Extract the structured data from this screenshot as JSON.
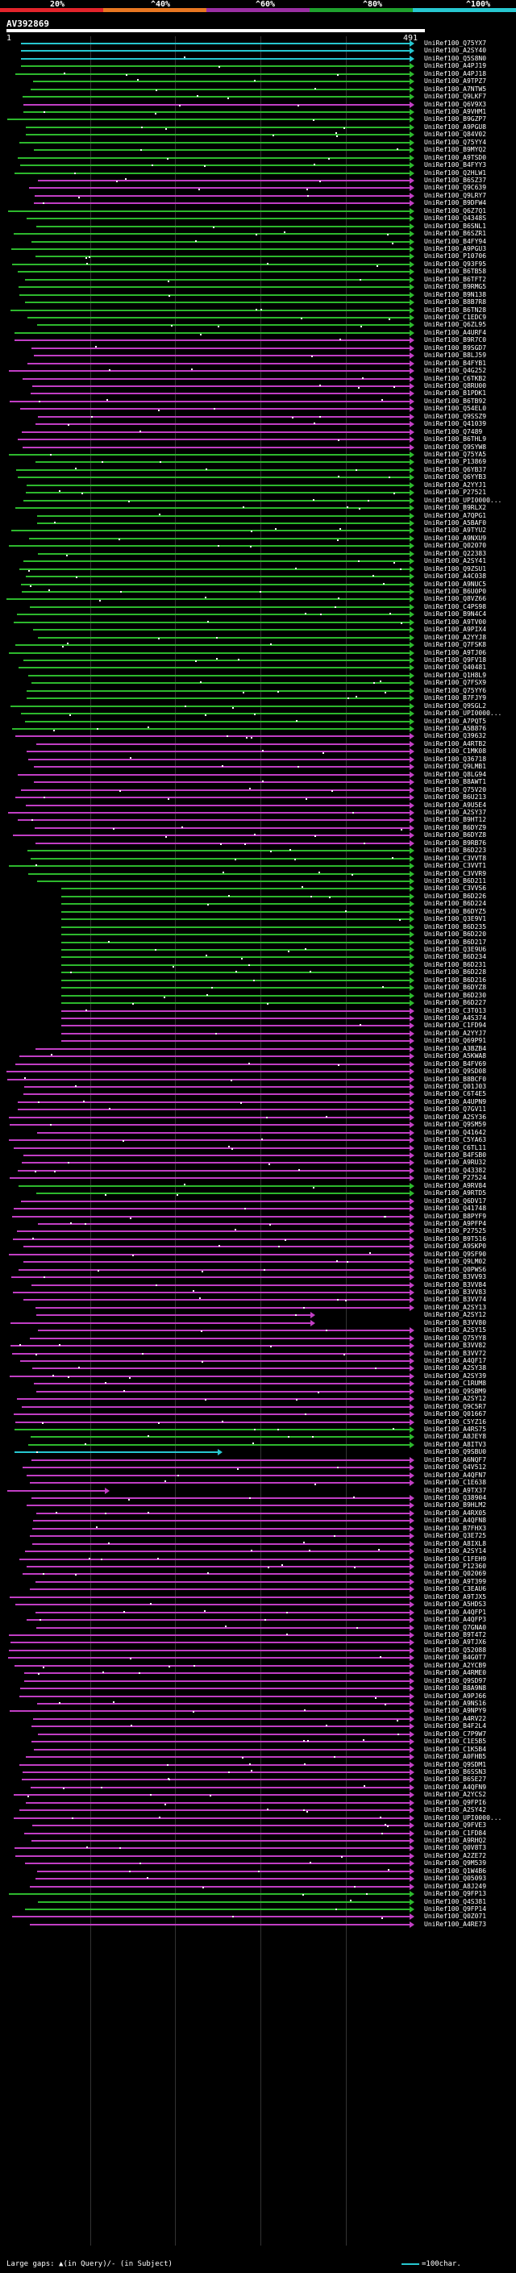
{
  "scale": {
    "labels": [
      "20%",
      "^40%",
      "^60%",
      "^80%",
      "^100%"
    ],
    "colors": [
      "#e3242b",
      "#e87722",
      "#9b2fa3",
      "#1fa12e",
      "#27c7d0"
    ]
  },
  "query": {
    "name": "AV392869",
    "start": "1",
    "end": "491"
  },
  "hit_colors": {
    "cyan": "#27c7d0",
    "green": "#2db82d",
    "magenta": "#c13ec4"
  },
  "hits": [
    {
      "label": "UniRef100_Q75YX7",
      "c": "cyan"
    },
    {
      "label": "UniRef100_A2SY40",
      "c": "cyan"
    },
    {
      "label": "UniRef100_Q5S8N0",
      "c": "cyan"
    },
    {
      "label": "UniRef100_A4PJ19",
      "c": "green"
    },
    {
      "label": "UniRef100_A4PJ18",
      "c": "green"
    },
    {
      "label": "UniRef100_A9TPZ7",
      "c": "green"
    },
    {
      "label": "UniRef100_A7NTW5",
      "c": "green"
    },
    {
      "label": "UniRef100_Q9LKF7",
      "c": "green"
    },
    {
      "label": "UniRef100_Q6V9X3",
      "c": "magenta"
    },
    {
      "label": "UniRef100_A9VHM1",
      "c": "green"
    },
    {
      "label": "UniRef100_B9GZP7",
      "c": "green"
    },
    {
      "label": "UniRef100_A9PGU8",
      "c": "green"
    },
    {
      "label": "UniRef100_Q84V02",
      "c": "green"
    },
    {
      "label": "UniRef100_Q75YY4",
      "c": "green"
    },
    {
      "label": "UniRef100_B9MYQ2",
      "c": "green"
    },
    {
      "label": "UniRef100_A9TSD0",
      "c": "green"
    },
    {
      "label": "UniRef100_B4FYY3",
      "c": "green"
    },
    {
      "label": "UniRef100_Q2HLW1",
      "c": "green"
    },
    {
      "label": "UniRef100_B6SZ37",
      "c": "magenta"
    },
    {
      "label": "UniRef100_Q9C639",
      "c": "magenta"
    },
    {
      "label": "UniRef100_Q9LRY7",
      "c": "magenta"
    },
    {
      "label": "UniRef100_B9DFW4",
      "c": "magenta"
    },
    {
      "label": "UniRef100_Q6Z7Q1",
      "c": "green"
    },
    {
      "label": "UniRef100_Q4348S",
      "c": "green"
    },
    {
      "label": "UniRef100_B6SNL1",
      "c": "green"
    },
    {
      "label": "UniRef100_B6SZR1",
      "c": "green"
    },
    {
      "label": "UniRef100_B4FY94",
      "c": "green"
    },
    {
      "label": "UniRef100_A9PGU3",
      "c": "green"
    },
    {
      "label": "UniRef100_P10706",
      "c": "green"
    },
    {
      "label": "UniRef100_Q93F95",
      "c": "green"
    },
    {
      "label": "UniRef100_B6TB58",
      "c": "green"
    },
    {
      "label": "UniRef100_B6TFT2",
      "c": "green"
    },
    {
      "label": "UniRef100_B9RMG5",
      "c": "green"
    },
    {
      "label": "UniRef100_B9N138",
      "c": "green"
    },
    {
      "label": "UniRef100_B8B7R8",
      "c": "green"
    },
    {
      "label": "UniRef100_B6TN28",
      "c": "green"
    },
    {
      "label": "UniRef100_C1EDC9",
      "c": "green"
    },
    {
      "label": "UniRef100_Q6ZL95",
      "c": "green"
    },
    {
      "label": "UniRef100_A4URF4",
      "c": "green"
    },
    {
      "label": "UniRef100_B9R7C0",
      "c": "magenta"
    },
    {
      "label": "UniRef100_B9SGD7",
      "c": "magenta"
    },
    {
      "label": "UniRef100_B8LJ59",
      "c": "magenta"
    },
    {
      "label": "UniRef100_B4FYB1",
      "c": "magenta"
    },
    {
      "label": "UniRef100_Q4G252",
      "c": "magenta"
    },
    {
      "label": "UniRef100_C6TKB2",
      "c": "magenta"
    },
    {
      "label": "UniRef100_Q8RU00",
      "c": "magenta"
    },
    {
      "label": "UniRef100_B1PDK1",
      "c": "magenta"
    },
    {
      "label": "UniRef100_B6TB92",
      "c": "magenta"
    },
    {
      "label": "UniRef100_Q54EL0",
      "c": "magenta"
    },
    {
      "label": "UniRef100_Q9SSZ9",
      "c": "magenta"
    },
    {
      "label": "UniRef100_Q41039",
      "c": "magenta"
    },
    {
      "label": "UniRef100_Q7489",
      "c": "magenta"
    },
    {
      "label": "UniRef100_B6THL9",
      "c": "magenta"
    },
    {
      "label": "UniRef100_Q9SYW8",
      "c": "magenta"
    },
    {
      "label": "UniRef100_Q75YA5",
      "c": "green"
    },
    {
      "label": "UniRef100_P13869",
      "c": "green"
    },
    {
      "label": "UniRef100_Q6YB37",
      "c": "green"
    },
    {
      "label": "UniRef100_Q6YYB3",
      "c": "green"
    },
    {
      "label": "UniRef100_A2YYJ1",
      "c": "green"
    },
    {
      "label": "UniRef100_P27521",
      "c": "green"
    },
    {
      "label": "UniRef100_UPI0000...",
      "c": "green"
    },
    {
      "label": "UniRef100_B9RLX2",
      "c": "green"
    },
    {
      "label": "UniRef100_A7QPG1",
      "c": "green"
    },
    {
      "label": "UniRef100_A5BAF0",
      "c": "green"
    },
    {
      "label": "UniRef100_A9TYU2",
      "c": "green"
    },
    {
      "label": "UniRef100_A9NXU9",
      "c": "green"
    },
    {
      "label": "UniRef100_Q02070",
      "c": "green"
    },
    {
      "label": "UniRef100_Q22383",
      "c": "green"
    },
    {
      "label": "UniRef100_A2SY41",
      "c": "green"
    },
    {
      "label": "UniRef100_Q9ZSU1",
      "c": "green"
    },
    {
      "label": "UniRef100_A4C038",
      "c": "green"
    },
    {
      "label": "UniRef100_A9NUC5",
      "c": "green"
    },
    {
      "label": "UniRef100_B6U0P0",
      "c": "green"
    },
    {
      "label": "UniRef100_Q8VZ66",
      "c": "green"
    },
    {
      "label": "UniRef100_C4PS98",
      "c": "green"
    },
    {
      "label": "UniRef100_B9N4C4",
      "c": "green"
    },
    {
      "label": "UniRef100_A9TV00",
      "c": "green"
    },
    {
      "label": "UniRef100_A9PIX4",
      "c": "green"
    },
    {
      "label": "UniRef100_A2YYJ8",
      "c": "green"
    },
    {
      "label": "UniRef100_Q7FSK8",
      "c": "green"
    },
    {
      "label": "UniRef100_A9TJ06",
      "c": "green"
    },
    {
      "label": "UniRef100_Q9FV18",
      "c": "green"
    },
    {
      "label": "UniRef100_Q40481",
      "c": "green"
    },
    {
      "label": "UniRef100_Q1H8L9",
      "c": "green"
    },
    {
      "label": "UniRef100_Q7FSX9",
      "c": "green"
    },
    {
      "label": "UniRef100_Q75YY6",
      "c": "green"
    },
    {
      "label": "UniRef100_B7FJY9",
      "c": "green"
    },
    {
      "label": "UniRef100_Q9SGL2",
      "c": "green"
    },
    {
      "label": "UniRef100_UPI0000...",
      "c": "green"
    },
    {
      "label": "UniRef100_A7PQT5",
      "c": "green"
    },
    {
      "label": "UniRef100_A5B876",
      "c": "green"
    },
    {
      "label": "UniRef100_Q39632",
      "c": "magenta"
    },
    {
      "label": "UniRef100_A4RTB2",
      "c": "magenta"
    },
    {
      "label": "UniRef100_C1MK08",
      "c": "magenta"
    },
    {
      "label": "UniRef100_Q36718",
      "c": "magenta"
    },
    {
      "label": "UniRef100_Q9LMB1",
      "c": "magenta"
    },
    {
      "label": "UniRef100_Q8LG94",
      "c": "magenta"
    },
    {
      "label": "UniRef100_B8AWT1",
      "c": "magenta"
    },
    {
      "label": "UniRef100_Q75V20",
      "c": "magenta"
    },
    {
      "label": "UniRef100_B6U213",
      "c": "magenta"
    },
    {
      "label": "UniRef100_A9U5E4",
      "c": "magenta"
    },
    {
      "label": "UniRef100_A2SY37",
      "c": "magenta"
    },
    {
      "label": "UniRef100_B9HT12",
      "c": "magenta"
    },
    {
      "label": "UniRef100_B6DYZ9",
      "c": "magenta"
    },
    {
      "label": "UniRef100_B6DYZ8",
      "c": "magenta"
    },
    {
      "label": "UniRef100_B9RB76",
      "c": "magenta"
    },
    {
      "label": "UniRef100_B6D223",
      "c": "green"
    },
    {
      "label": "UniRef100_C3VVT8",
      "c": "green"
    },
    {
      "label": "UniRef100_C3VVT1",
      "c": "green"
    },
    {
      "label": "UniRef100_C3VVR9",
      "c": "green"
    },
    {
      "label": "UniRef100_B6D211",
      "c": "green"
    },
    {
      "label": "UniRef100_C3VVS6",
      "c": "green"
    },
    {
      "label": "UniRef100_B6D226",
      "c": "green"
    },
    {
      "label": "UniRef100_B6D224",
      "c": "green"
    },
    {
      "label": "UniRef100_B6DYZ5",
      "c": "green"
    },
    {
      "label": "UniRef100_Q3E9V1",
      "c": "green"
    },
    {
      "label": "UniRef100_B6D235",
      "c": "green"
    },
    {
      "label": "UniRef100_B6D220",
      "c": "green"
    },
    {
      "label": "UniRef100_B6D217",
      "c": "green"
    },
    {
      "label": "UniRef100_Q3E9U6",
      "c": "green"
    },
    {
      "label": "UniRef100_B6D234",
      "c": "green"
    },
    {
      "label": "UniRef100_B6D231",
      "c": "green"
    },
    {
      "label": "UniRef100_B6D228",
      "c": "green"
    },
    {
      "label": "UniRef100_B6D216",
      "c": "green"
    },
    {
      "label": "UniRef100_B6DYZ8",
      "c": "green"
    },
    {
      "label": "UniRef100_B6D230",
      "c": "green"
    },
    {
      "label": "UniRef100_B6D227",
      "c": "green"
    },
    {
      "label": "UniRef100_C3T013",
      "c": "magenta"
    },
    {
      "label": "UniRef100_A4S374",
      "c": "magenta"
    },
    {
      "label": "UniRef100_C1FD94",
      "c": "magenta"
    },
    {
      "label": "UniRef100_A2YYJ7",
      "c": "magenta"
    },
    {
      "label": "UniRef100_Q69P91",
      "c": "magenta"
    },
    {
      "label": "UniRef100_A3BZB4",
      "c": "magenta"
    },
    {
      "label": "UniRef100_A5KWA8",
      "c": "magenta"
    },
    {
      "label": "UniRef100_B4FV69",
      "c": "magenta"
    },
    {
      "label": "UniRef100_Q9SD08",
      "c": "magenta"
    },
    {
      "label": "UniRef100_B8BCF0",
      "c": "magenta"
    },
    {
      "label": "UniRef100_Q01J03",
      "c": "magenta"
    },
    {
      "label": "UniRef100_C6T4E5",
      "c": "magenta"
    },
    {
      "label": "UniRef100_A4UPN9",
      "c": "magenta"
    },
    {
      "label": "UniRef100_Q7GV11",
      "c": "magenta"
    },
    {
      "label": "UniRef100_A2SY36",
      "c": "magenta"
    },
    {
      "label": "UniRef100_Q9SM59",
      "c": "magenta"
    },
    {
      "label": "UniRef100_Q41642",
      "c": "magenta"
    },
    {
      "label": "UniRef100_C5YA63",
      "c": "magenta"
    },
    {
      "label": "UniRef100_C6TL11",
      "c": "magenta"
    },
    {
      "label": "UniRef100_B4FSB0",
      "c": "magenta"
    },
    {
      "label": "UniRef100_A9RU32",
      "c": "magenta"
    },
    {
      "label": "UniRef100_Q43382",
      "c": "magenta"
    },
    {
      "label": "UniRef100_P27524",
      "c": "magenta"
    },
    {
      "label": "UniRef100_A9RV84",
      "c": "green"
    },
    {
      "label": "UniRef100_A9RTD5",
      "c": "green"
    },
    {
      "label": "UniRef100_Q6DV17",
      "c": "magenta"
    },
    {
      "label": "UniRef100_Q41748",
      "c": "magenta"
    },
    {
      "label": "UniRef100_B8PYF9",
      "c": "magenta"
    },
    {
      "label": "UniRef100_A9PFP4",
      "c": "magenta"
    },
    {
      "label": "UniRef100_P27525",
      "c": "magenta"
    },
    {
      "label": "UniRef100_B9T516",
      "c": "magenta"
    },
    {
      "label": "UniRef100_A9SKP0",
      "c": "magenta"
    },
    {
      "label": "UniRef100_Q9SF90",
      "c": "magenta"
    },
    {
      "label": "UniRef100_Q9LM02",
      "c": "magenta"
    },
    {
      "label": "UniRef100_Q0PWS6",
      "c": "magenta"
    },
    {
      "label": "UniRef100_B3VV93",
      "c": "magenta"
    },
    {
      "label": "UniRef100_B3VV84",
      "c": "magenta"
    },
    {
      "label": "UniRef100_B3VV83",
      "c": "magenta"
    },
    {
      "label": "UniRef100_B3VV74",
      "c": "magenta"
    },
    {
      "label": "UniRef100_A2SY13",
      "c": "magenta"
    },
    {
      "label": "UniRef100_A2SY12",
      "c": "magenta"
    },
    {
      "label": "UniRef100_B3VV80",
      "c": "magenta"
    },
    {
      "label": "UniRef100_A2SY15",
      "c": "magenta"
    },
    {
      "label": "UniRef100_Q75YY8",
      "c": "magenta"
    },
    {
      "label": "UniRef100_B3VV82",
      "c": "magenta"
    },
    {
      "label": "UniRef100_B3VV72",
      "c": "magenta"
    },
    {
      "label": "UniRef100_A4QF17",
      "c": "magenta"
    },
    {
      "label": "UniRef100_A2SY38",
      "c": "magenta"
    },
    {
      "label": "UniRef100_A2SY39",
      "c": "magenta"
    },
    {
      "label": "UniRef100_C1RUM8",
      "c": "magenta"
    },
    {
      "label": "UniRef100_Q9SBM9",
      "c": "magenta"
    },
    {
      "label": "UniRef100_A2SY12",
      "c": "magenta"
    },
    {
      "label": "UniRef100_Q9C5R7",
      "c": "magenta"
    },
    {
      "label": "UniRef100_Q01667",
      "c": "magenta"
    },
    {
      "label": "UniRef100_C5YZ16",
      "c": "magenta"
    },
    {
      "label": "UniRef100_A4RS75",
      "c": "green"
    },
    {
      "label": "UniRef100_A8JEY8",
      "c": "green"
    },
    {
      "label": "UniRef100_A8ITV3",
      "c": "green"
    },
    {
      "label": "UniRef100_Q9SBU0",
      "c": "cyan"
    },
    {
      "label": "UniRef100_A6NQF7",
      "c": "magenta"
    },
    {
      "label": "UniRef100_Q4V512",
      "c": "magenta"
    },
    {
      "label": "UniRef100_A4QFN7",
      "c": "magenta"
    },
    {
      "label": "UniRef100_C1E638",
      "c": "magenta"
    },
    {
      "label": "UniRef100_A9TX37",
      "c": "magenta"
    },
    {
      "label": "UniRef100_Q38904",
      "c": "magenta"
    },
    {
      "label": "UniRef100_B9HLM2",
      "c": "magenta"
    },
    {
      "label": "UniRef100_A4RX05",
      "c": "magenta"
    },
    {
      "label": "UniRef100_A4QFN8",
      "c": "magenta"
    },
    {
      "label": "UniRef100_B7FHX3",
      "c": "magenta"
    },
    {
      "label": "UniRef100_Q3E725",
      "c": "magenta"
    },
    {
      "label": "UniRef100_A8IXL8",
      "c": "magenta"
    },
    {
      "label": "UniRef100_A2SY14",
      "c": "magenta"
    },
    {
      "label": "UniRef100_C1FEH9",
      "c": "magenta"
    },
    {
      "label": "UniRef100_P12360",
      "c": "magenta"
    },
    {
      "label": "UniRef100_Q02069",
      "c": "magenta"
    },
    {
      "label": "UniRef100_A9T399",
      "c": "magenta"
    },
    {
      "label": "UniRef100_C3EAU6",
      "c": "magenta"
    },
    {
      "label": "UniRef100_A9TJX5",
      "c": "magenta"
    },
    {
      "label": "UniRef100_A5HDS3",
      "c": "magenta"
    },
    {
      "label": "UniRef100_A4QFP1",
      "c": "magenta"
    },
    {
      "label": "UniRef100_A4QFP3",
      "c": "magenta"
    },
    {
      "label": "UniRef100_Q7GNA0",
      "c": "magenta"
    },
    {
      "label": "UniRef100_B9T4T2",
      "c": "magenta"
    },
    {
      "label": "UniRef100_A9TJX6",
      "c": "magenta"
    },
    {
      "label": "UniRef100_Q52088",
      "c": "magenta"
    },
    {
      "label": "UniRef100_B4G0T7",
      "c": "magenta"
    },
    {
      "label": "UniRef100_A2YCB9",
      "c": "magenta"
    },
    {
      "label": "UniRef100_A4RME0",
      "c": "magenta"
    },
    {
      "label": "UniRef100_Q9SD97",
      "c": "magenta"
    },
    {
      "label": "UniRef100_B8A9N8",
      "c": "magenta"
    },
    {
      "label": "UniRef100_A9PJ66",
      "c": "magenta"
    },
    {
      "label": "UniRef100_A9NS16",
      "c": "magenta"
    },
    {
      "label": "UniRef100_A9NPY9",
      "c": "magenta"
    },
    {
      "label": "UniRef100_A4RV22",
      "c": "magenta"
    },
    {
      "label": "UniRef100_B4F2L4",
      "c": "magenta"
    },
    {
      "label": "UniRef100_C7P9W7",
      "c": "magenta"
    },
    {
      "label": "UniRef100_C1E5B5",
      "c": "magenta"
    },
    {
      "label": "UniRef100_C1K5B4",
      "c": "magenta"
    },
    {
      "label": "UniRef100_A0FHB5",
      "c": "magenta"
    },
    {
      "label": "UniRef100_Q9SDM1",
      "c": "magenta"
    },
    {
      "label": "UniRef100_B6SSN3",
      "c": "magenta"
    },
    {
      "label": "UniRef100_B6SE27",
      "c": "magenta"
    },
    {
      "label": "UniRef100_A4QFN9",
      "c": "magenta"
    },
    {
      "label": "UniRef100_A2YCS2",
      "c": "magenta"
    },
    {
      "label": "UniRef100_Q9FPI6",
      "c": "magenta"
    },
    {
      "label": "UniRef100_A2SY42",
      "c": "magenta"
    },
    {
      "label": "UniRef100_UPI0000...",
      "c": "magenta"
    },
    {
      "label": "UniRef100_Q9FVE3",
      "c": "magenta"
    },
    {
      "label": "UniRef100_C1FD84",
      "c": "magenta"
    },
    {
      "label": "UniRef100_A9RHQ2",
      "c": "magenta"
    },
    {
      "label": "UniRef100_Q0V8T3",
      "c": "magenta"
    },
    {
      "label": "UniRef100_A2ZE72",
      "c": "magenta"
    },
    {
      "label": "UniRef100_Q9M539",
      "c": "magenta"
    },
    {
      "label": "UniRef100_Q1W4B6",
      "c": "magenta"
    },
    {
      "label": "UniRef100_Q05093",
      "c": "magenta"
    },
    {
      "label": "UniRef100_A8J249",
      "c": "magenta"
    },
    {
      "label": "UniRef100_Q9FP13",
      "c": "green"
    },
    {
      "label": "UniRef100_Q4S381",
      "c": "green"
    },
    {
      "label": "UniRef100_Q9FP14",
      "c": "green"
    },
    {
      "label": "UniRef100_Q0Z071",
      "c": "magenta"
    },
    {
      "label": "UniRef100_A4RE73",
      "c": "magenta"
    }
  ],
  "footer": {
    "text": "Large gaps: ▲(in Query)/- (in Subject)",
    "legend": "=100char."
  }
}
